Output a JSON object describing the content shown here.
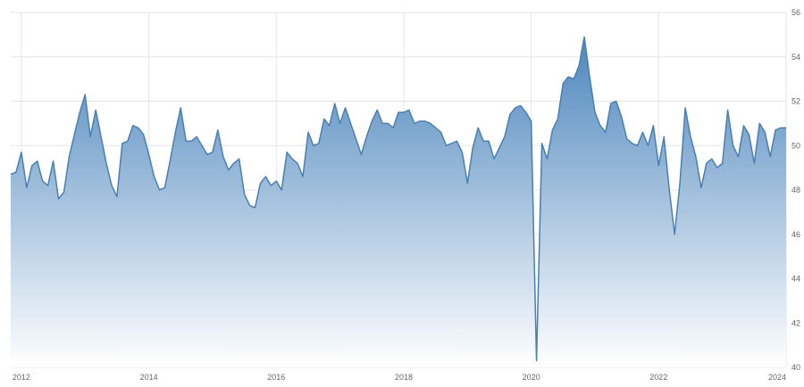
{
  "chart_data": {
    "type": "area",
    "title": "",
    "xlabel": "",
    "ylabel": "",
    "xlim": [
      2011.833,
      2024.0
    ],
    "ylim": [
      40,
      56
    ],
    "y_ticks": [
      40,
      42,
      44,
      46,
      48,
      50,
      52,
      54,
      56
    ],
    "x_ticks": [
      2012,
      2014,
      2016,
      2018,
      2020,
      2022,
      2024
    ],
    "grid": true,
    "legend": "none",
    "colors": {
      "line": "#4a7fb0",
      "fill_top": "#4d86bd",
      "fill_bottom": "#ffffff",
      "grid": "#e6e6e6",
      "tick_text": "#666666"
    },
    "series": [
      {
        "values": [
          [
            2011.833,
            48.7
          ],
          [
            2011.917,
            48.8
          ],
          [
            2012.0,
            49.7
          ],
          [
            2012.083,
            48.1
          ],
          [
            2012.167,
            49.1
          ],
          [
            2012.25,
            49.3
          ],
          [
            2012.333,
            48.4
          ],
          [
            2012.417,
            48.2
          ],
          [
            2012.5,
            49.3
          ],
          [
            2012.583,
            47.6
          ],
          [
            2012.667,
            47.9
          ],
          [
            2012.75,
            49.5
          ],
          [
            2012.833,
            50.5
          ],
          [
            2012.917,
            51.5
          ],
          [
            2013.0,
            52.3
          ],
          [
            2013.083,
            50.4
          ],
          [
            2013.167,
            51.6
          ],
          [
            2013.25,
            50.4
          ],
          [
            2013.333,
            49.2
          ],
          [
            2013.417,
            48.2
          ],
          [
            2013.5,
            47.7
          ],
          [
            2013.583,
            50.1
          ],
          [
            2013.667,
            50.2
          ],
          [
            2013.75,
            50.9
          ],
          [
            2013.833,
            50.8
          ],
          [
            2013.917,
            50.5
          ],
          [
            2014.0,
            49.6
          ],
          [
            2014.083,
            48.6
          ],
          [
            2014.167,
            48.0
          ],
          [
            2014.25,
            48.1
          ],
          [
            2014.333,
            49.3
          ],
          [
            2014.417,
            50.6
          ],
          [
            2014.5,
            51.7
          ],
          [
            2014.583,
            50.2
          ],
          [
            2014.667,
            50.2
          ],
          [
            2014.75,
            50.4
          ],
          [
            2014.833,
            50.0
          ],
          [
            2014.917,
            49.6
          ],
          [
            2015.0,
            49.7
          ],
          [
            2015.083,
            50.7
          ],
          [
            2015.167,
            49.5
          ],
          [
            2015.25,
            48.9
          ],
          [
            2015.333,
            49.2
          ],
          [
            2015.417,
            49.4
          ],
          [
            2015.5,
            47.8
          ],
          [
            2015.583,
            47.3
          ],
          [
            2015.667,
            47.2
          ],
          [
            2015.75,
            48.3
          ],
          [
            2015.833,
            48.6
          ],
          [
            2015.917,
            48.2
          ],
          [
            2016.0,
            48.4
          ],
          [
            2016.083,
            48.0
          ],
          [
            2016.167,
            49.7
          ],
          [
            2016.25,
            49.4
          ],
          [
            2016.333,
            49.2
          ],
          [
            2016.417,
            48.6
          ],
          [
            2016.5,
            50.6
          ],
          [
            2016.583,
            50.0
          ],
          [
            2016.667,
            50.1
          ],
          [
            2016.75,
            51.2
          ],
          [
            2016.833,
            50.9
          ],
          [
            2016.917,
            51.9
          ],
          [
            2017.0,
            51.0
          ],
          [
            2017.083,
            51.7
          ],
          [
            2017.167,
            51.0
          ],
          [
            2017.25,
            50.3
          ],
          [
            2017.333,
            49.6
          ],
          [
            2017.417,
            50.4
          ],
          [
            2017.5,
            51.1
          ],
          [
            2017.583,
            51.6
          ],
          [
            2017.667,
            51.0
          ],
          [
            2017.75,
            51.0
          ],
          [
            2017.833,
            50.8
          ],
          [
            2017.917,
            51.5
          ],
          [
            2018.0,
            51.5
          ],
          [
            2018.083,
            51.6
          ],
          [
            2018.167,
            51.0
          ],
          [
            2018.25,
            51.1
          ],
          [
            2018.333,
            51.1
          ],
          [
            2018.417,
            51.0
          ],
          [
            2018.5,
            50.8
          ],
          [
            2018.583,
            50.6
          ],
          [
            2018.667,
            50.0
          ],
          [
            2018.75,
            50.1
          ],
          [
            2018.833,
            50.2
          ],
          [
            2018.917,
            49.7
          ],
          [
            2019.0,
            48.3
          ],
          [
            2019.083,
            49.9
          ],
          [
            2019.167,
            50.8
          ],
          [
            2019.25,
            50.2
          ],
          [
            2019.333,
            50.2
          ],
          [
            2019.417,
            49.4
          ],
          [
            2019.5,
            49.9
          ],
          [
            2019.583,
            50.4
          ],
          [
            2019.667,
            51.4
          ],
          [
            2019.75,
            51.7
          ],
          [
            2019.833,
            51.8
          ],
          [
            2019.917,
            51.5
          ],
          [
            2020.0,
            51.1
          ],
          [
            2020.083,
            40.3
          ],
          [
            2020.167,
            50.1
          ],
          [
            2020.25,
            49.4
          ],
          [
            2020.333,
            50.7
          ],
          [
            2020.417,
            51.2
          ],
          [
            2020.5,
            52.8
          ],
          [
            2020.583,
            53.1
          ],
          [
            2020.667,
            53.0
          ],
          [
            2020.75,
            53.6
          ],
          [
            2020.833,
            54.9
          ],
          [
            2020.917,
            53.1
          ],
          [
            2021.0,
            51.5
          ],
          [
            2021.083,
            50.9
          ],
          [
            2021.167,
            50.6
          ],
          [
            2021.25,
            51.9
          ],
          [
            2021.333,
            52.0
          ],
          [
            2021.417,
            51.3
          ],
          [
            2021.5,
            50.3
          ],
          [
            2021.583,
            50.1
          ],
          [
            2021.667,
            50.0
          ],
          [
            2021.75,
            50.6
          ],
          [
            2021.833,
            50.0
          ],
          [
            2021.917,
            50.9
          ],
          [
            2022.0,
            49.1
          ],
          [
            2022.083,
            50.4
          ],
          [
            2022.167,
            48.0
          ],
          [
            2022.25,
            46.0
          ],
          [
            2022.333,
            48.3
          ],
          [
            2022.417,
            51.7
          ],
          [
            2022.5,
            50.4
          ],
          [
            2022.583,
            49.5
          ],
          [
            2022.667,
            48.1
          ],
          [
            2022.75,
            49.2
          ],
          [
            2022.833,
            49.4
          ],
          [
            2022.917,
            49.0
          ],
          [
            2023.0,
            49.2
          ],
          [
            2023.083,
            51.6
          ],
          [
            2023.167,
            50.0
          ],
          [
            2023.25,
            49.5
          ],
          [
            2023.333,
            50.9
          ],
          [
            2023.417,
            50.5
          ],
          [
            2023.5,
            49.2
          ],
          [
            2023.583,
            51.0
          ],
          [
            2023.667,
            50.6
          ],
          [
            2023.75,
            49.5
          ],
          [
            2023.833,
            50.7
          ],
          [
            2023.917,
            50.8
          ],
          [
            2024.0,
            50.8
          ]
        ]
      }
    ]
  }
}
